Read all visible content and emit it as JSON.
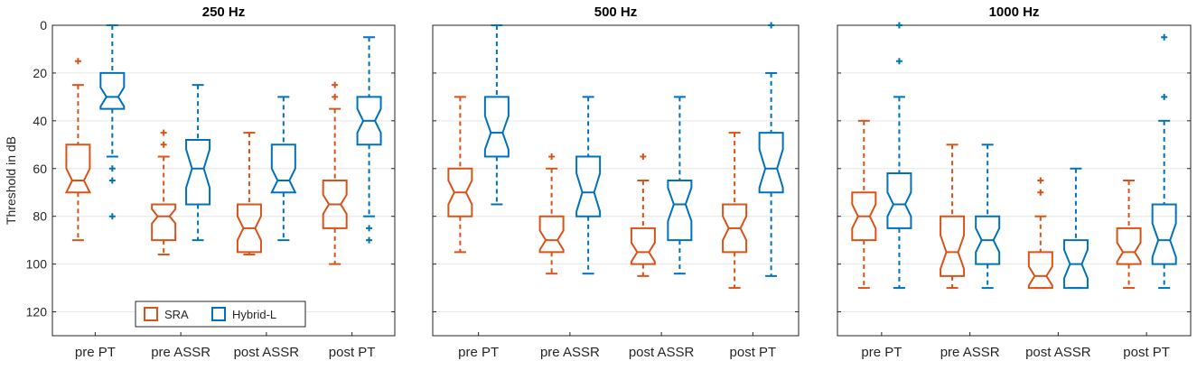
{
  "figure": {
    "ylabel": "Threshold in dB",
    "legend": {
      "location": "bottom-left of first panel",
      "entries": [
        "SRA",
        "Hybrid-L"
      ]
    }
  },
  "colors": {
    "SRA": "#D95319",
    "Hybrid-L": "#0072BD",
    "grid": "#e6e6e6",
    "axis": "#262626"
  },
  "chart_data": [
    {
      "type": "box",
      "title": "250 Hz",
      "ylabel": "Threshold in dB",
      "ylim": [
        0,
        130
      ],
      "y_direction": "reversed",
      "yticks": [
        0,
        20,
        40,
        60,
        80,
        100,
        120
      ],
      "grid": true,
      "categories": [
        "pre PT",
        "pre ASSR",
        "post ASSR",
        "post PT"
      ],
      "series": [
        {
          "name": "SRA",
          "boxes": [
            {
              "q1": 50,
              "median": 65,
              "q3": 70,
              "whisker_low": 25,
              "whisker_high": 90,
              "notch": [
                60,
                70
              ],
              "outliers": [
                15
              ]
            },
            {
              "q1": 75,
              "median": 80,
              "q3": 90,
              "whisker_low": 55,
              "whisker_high": 96,
              "notch": [
                77,
                83
              ],
              "outliers": [
                45,
                50
              ]
            },
            {
              "q1": 75,
              "median": 85,
              "q3": 95,
              "whisker_low": 45,
              "whisker_high": 96,
              "notch": [
                80,
                90
              ],
              "outliers": []
            },
            {
              "q1": 65,
              "median": 75,
              "q3": 85,
              "whisker_low": 35,
              "whisker_high": 100,
              "notch": [
                71,
                79
              ],
              "outliers": [
                25,
                30
              ]
            }
          ]
        },
        {
          "name": "Hybrid-L",
          "boxes": [
            {
              "q1": 20,
              "median": 30,
              "q3": 35,
              "whisker_low": 0,
              "whisker_high": 55,
              "notch": [
                26,
                34
              ],
              "outliers": [
                60,
                65,
                80
              ]
            },
            {
              "q1": 48,
              "median": 60,
              "q3": 75,
              "whisker_low": 25,
              "whisker_high": 90,
              "notch": [
                52,
                68
              ],
              "outliers": []
            },
            {
              "q1": 50,
              "median": 65,
              "q3": 70,
              "whisker_low": 30,
              "whisker_high": 90,
              "notch": [
                60,
                70
              ],
              "outliers": []
            },
            {
              "q1": 30,
              "median": 40,
              "q3": 50,
              "whisker_low": 5,
              "whisker_high": 80,
              "notch": [
                35,
                45
              ],
              "outliers": [
                85,
                90
              ]
            }
          ]
        }
      ]
    },
    {
      "type": "box",
      "title": "500 Hz",
      "ylabel": "",
      "ylim": [
        0,
        130
      ],
      "y_direction": "reversed",
      "yticks": [
        0,
        20,
        40,
        60,
        80,
        100,
        120
      ],
      "grid": true,
      "categories": [
        "pre PT",
        "pre ASSR",
        "post ASSR",
        "post PT"
      ],
      "series": [
        {
          "name": "SRA",
          "boxes": [
            {
              "q1": 60,
              "median": 70,
              "q3": 80,
              "whisker_low": 30,
              "whisker_high": 95,
              "notch": [
                65,
                75
              ],
              "outliers": []
            },
            {
              "q1": 80,
              "median": 90,
              "q3": 95,
              "whisker_low": 60,
              "whisker_high": 104,
              "notch": [
                86,
                94
              ],
              "outliers": [
                55
              ]
            },
            {
              "q1": 85,
              "median": 95,
              "q3": 100,
              "whisker_low": 65,
              "whisker_high": 105,
              "notch": [
                91,
                99
              ],
              "outliers": [
                55
              ]
            },
            {
              "q1": 75,
              "median": 85,
              "q3": 95,
              "whisker_low": 45,
              "whisker_high": 110,
              "notch": [
                80,
                90
              ],
              "outliers": []
            }
          ]
        },
        {
          "name": "Hybrid-L",
          "boxes": [
            {
              "q1": 30,
              "median": 45,
              "q3": 55,
              "whisker_low": 0,
              "whisker_high": 75,
              "notch": [
                38,
                52
              ],
              "outliers": []
            },
            {
              "q1": 55,
              "median": 70,
              "q3": 80,
              "whisker_low": 30,
              "whisker_high": 104,
              "notch": [
                62,
                78
              ],
              "outliers": []
            },
            {
              "q1": 65,
              "median": 75,
              "q3": 90,
              "whisker_low": 30,
              "whisker_high": 104,
              "notch": [
                68,
                82
              ],
              "outliers": []
            },
            {
              "q1": 45,
              "median": 60,
              "q3": 70,
              "whisker_low": 20,
              "whisker_high": 105,
              "notch": [
                52,
                68
              ],
              "outliers": [
                0
              ]
            }
          ]
        }
      ]
    },
    {
      "type": "box",
      "title": "1000 Hz",
      "ylabel": "",
      "ylim": [
        0,
        130
      ],
      "y_direction": "reversed",
      "yticks": [
        0,
        20,
        40,
        60,
        80,
        100,
        120
      ],
      "grid": true,
      "categories": [
        "pre PT",
        "pre ASSR",
        "post ASSR",
        "post PT"
      ],
      "series": [
        {
          "name": "SRA",
          "boxes": [
            {
              "q1": 70,
              "median": 80,
              "q3": 90,
              "whisker_low": 40,
              "whisker_high": 110,
              "notch": [
                75,
                85
              ],
              "outliers": []
            },
            {
              "q1": 80,
              "median": 95,
              "q3": 105,
              "whisker_low": 50,
              "whisker_high": 110,
              "notch": [
                88,
                102
              ],
              "outliers": []
            },
            {
              "q1": 95,
              "median": 105,
              "q3": 110,
              "whisker_low": 80,
              "whisker_high": 110,
              "notch": [
                101,
                109
              ],
              "outliers": [
                65,
                70
              ]
            },
            {
              "q1": 85,
              "median": 95,
              "q3": 100,
              "whisker_low": 65,
              "whisker_high": 110,
              "notch": [
                91,
                99
              ],
              "outliers": []
            }
          ]
        },
        {
          "name": "Hybrid-L",
          "boxes": [
            {
              "q1": 62,
              "median": 75,
              "q3": 85,
              "whisker_low": 30,
              "whisker_high": 110,
              "notch": [
                70,
                80
              ],
              "outliers": [
                0,
                15
              ]
            },
            {
              "q1": 80,
              "median": 90,
              "q3": 100,
              "whisker_low": 50,
              "whisker_high": 110,
              "notch": [
                85,
                95
              ],
              "outliers": []
            },
            {
              "q1": 90,
              "median": 100,
              "q3": 110,
              "whisker_low": 60,
              "whisker_high": 110,
              "notch": [
                94,
                106
              ],
              "outliers": []
            },
            {
              "q1": 75,
              "median": 90,
              "q3": 100,
              "whisker_low": 40,
              "whisker_high": 110,
              "notch": [
                83,
                97
              ],
              "outliers": [
                5,
                30
              ]
            }
          ]
        }
      ]
    }
  ]
}
